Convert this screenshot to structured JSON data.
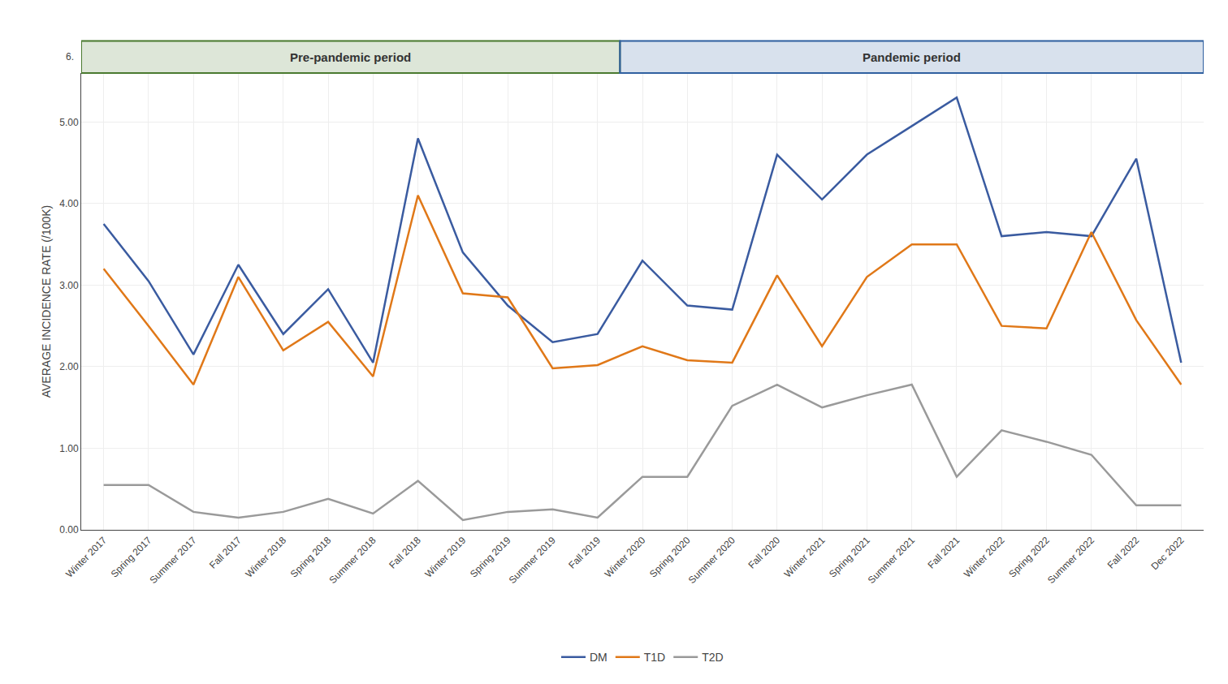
{
  "chart_data": {
    "type": "line",
    "categories": [
      "Winter 2017",
      "Spring 2017",
      "Summer 2017",
      "Fall 2017",
      "Winter 2018",
      "Spring 2018",
      "Summer 2018",
      "Fall 2018",
      "Winter 2019",
      "Spring 2019",
      "Summer 2019",
      "Fall 2019",
      "Winter 2020",
      "Spring 2020",
      "Summer 2020",
      "Fall 2020",
      "Winter 2021",
      "Spring 2021",
      "Summer 2021",
      "Fall 2021",
      "Winter 2022",
      "Spring 2022",
      "Summer 2022",
      "Fall 2022",
      "Dec 2022"
    ],
    "series": [
      {
        "name": "DM",
        "color": "#3a5ba0",
        "values": [
          3.75,
          3.05,
          2.15,
          3.25,
          2.4,
          2.95,
          2.05,
          4.8,
          3.4,
          2.75,
          2.3,
          2.4,
          3.3,
          2.75,
          2.7,
          4.6,
          4.05,
          4.6,
          4.95,
          5.3,
          3.6,
          3.65,
          3.6,
          4.55,
          2.05
        ]
      },
      {
        "name": "T1D",
        "color": "#e07818",
        "values": [
          3.2,
          2.5,
          1.78,
          3.1,
          2.2,
          2.55,
          1.88,
          4.1,
          2.9,
          2.85,
          1.98,
          2.02,
          2.25,
          2.08,
          2.05,
          3.12,
          2.25,
          3.1,
          3.5,
          3.5,
          2.5,
          2.47,
          3.65,
          2.57,
          1.78
        ]
      },
      {
        "name": "T2D",
        "color": "#9a9a9a",
        "values": [
          0.55,
          0.55,
          0.22,
          0.15,
          0.22,
          0.38,
          0.2,
          0.6,
          0.12,
          0.22,
          0.25,
          0.15,
          0.65,
          0.65,
          1.52,
          1.78,
          1.5,
          1.65,
          1.78,
          0.65,
          1.22,
          1.08,
          0.92,
          0.3,
          0.3
        ]
      }
    ],
    "y_label": "AVERAGE INCIDENCE RATE (/100K)",
    "ylim": [
      0.0,
      5.6
    ],
    "yticks": [
      {
        "value": 0.0,
        "label": "0.00"
      },
      {
        "value": 1.0,
        "label": "1.00"
      },
      {
        "value": 2.0,
        "label": "2.00"
      },
      {
        "value": 3.0,
        "label": "3.00"
      },
      {
        "value": 4.0,
        "label": "4.00"
      },
      {
        "value": 5.0,
        "label": "5.00"
      }
    ],
    "annotations": [
      {
        "text": "Pre-pandemic period",
        "start": "Winter 2017",
        "end": "Fall 2019",
        "color": "#4a7a30"
      },
      {
        "text": "Pandemic period",
        "start": "Winter 2020",
        "end": "Dec 2022",
        "color": "#3060a0"
      },
      {
        "text": "6."
      }
    ],
    "grid": true,
    "legend": "bottom"
  }
}
